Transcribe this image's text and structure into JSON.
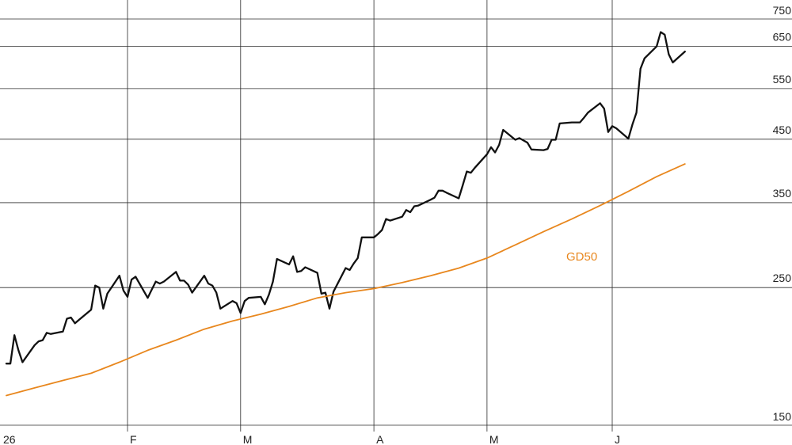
{
  "chart_data": {
    "type": "line",
    "title": "",
    "xlabel": "",
    "ylabel": "",
    "y_scale": "log",
    "ylim": [
      150,
      750
    ],
    "y_ticks": [
      150,
      250,
      350,
      450,
      550,
      650,
      750
    ],
    "x_ticks": [
      {
        "label": "26",
        "date": "2023-01-02"
      },
      {
        "label": "F",
        "date": "2023-02-01"
      },
      {
        "label": "M",
        "date": "2023-03-01"
      },
      {
        "label": "A",
        "date": "2023-04-03"
      },
      {
        "label": "M",
        "date": "2023-05-01"
      },
      {
        "label": "J",
        "date": "2023-06-01"
      }
    ],
    "xlim": [
      "2023-01-02",
      "2023-07-10"
    ],
    "grid": true,
    "legend": "none",
    "colors": {
      "price": "#111111",
      "ma": "#e8871e",
      "grid": "#2b2b2b"
    },
    "series": [
      {
        "name": "",
        "color": "#111111",
        "points": [
          [
            "2023-01-02",
            185
          ],
          [
            "2023-01-03",
            185
          ],
          [
            "2023-01-04",
            207
          ],
          [
            "2023-01-05",
            195
          ],
          [
            "2023-01-06",
            186
          ],
          [
            "2023-01-09",
            199
          ],
          [
            "2023-01-10",
            202
          ],
          [
            "2023-01-11",
            203
          ],
          [
            "2023-01-12",
            209
          ],
          [
            "2023-01-13",
            208
          ],
          [
            "2023-01-16",
            210
          ],
          [
            "2023-01-17",
            221
          ],
          [
            "2023-01-18",
            222
          ],
          [
            "2023-01-19",
            217
          ],
          [
            "2023-01-20",
            220
          ],
          [
            "2023-01-23",
            229
          ],
          [
            "2023-01-24",
            252
          ],
          [
            "2023-01-25",
            250
          ],
          [
            "2023-01-26",
            230
          ],
          [
            "2023-01-27",
            244
          ],
          [
            "2023-01-30",
            262
          ],
          [
            "2023-01-31",
            247
          ],
          [
            "2023-02-01",
            241
          ],
          [
            "2023-02-02",
            258
          ],
          [
            "2023-02-03",
            261
          ],
          [
            "2023-02-06",
            240
          ],
          [
            "2023-02-07",
            248
          ],
          [
            "2023-02-08",
            256
          ],
          [
            "2023-02-09",
            254
          ],
          [
            "2023-02-10",
            256
          ],
          [
            "2023-02-13",
            266
          ],
          [
            "2023-02-14",
            257
          ],
          [
            "2023-02-15",
            257
          ],
          [
            "2023-02-16",
            253
          ],
          [
            "2023-02-17",
            245
          ],
          [
            "2023-02-20",
            262
          ],
          [
            "2023-02-21",
            254
          ],
          [
            "2023-02-22",
            252
          ],
          [
            "2023-02-23",
            245
          ],
          [
            "2023-02-24",
            230
          ],
          [
            "2023-02-27",
            237
          ],
          [
            "2023-02-28",
            235
          ],
          [
            "2023-03-01",
            226
          ],
          [
            "2023-03-02",
            237
          ],
          [
            "2023-03-03",
            240
          ],
          [
            "2023-03-06",
            241
          ],
          [
            "2023-03-07",
            234
          ],
          [
            "2023-03-08",
            243
          ],
          [
            "2023-03-09",
            256
          ],
          [
            "2023-03-10",
            280
          ],
          [
            "2023-03-13",
            274
          ],
          [
            "2023-03-14",
            283
          ],
          [
            "2023-03-15",
            266
          ],
          [
            "2023-03-16",
            267
          ],
          [
            "2023-03-17",
            271
          ],
          [
            "2023-03-20",
            265
          ],
          [
            "2023-03-21",
            244
          ],
          [
            "2023-03-22",
            245
          ],
          [
            "2023-03-23",
            230
          ],
          [
            "2023-03-24",
            246
          ],
          [
            "2023-03-27",
            270
          ],
          [
            "2023-03-28",
            268
          ],
          [
            "2023-03-29",
            275
          ],
          [
            "2023-03-30",
            281
          ],
          [
            "2023-03-31",
            305
          ],
          [
            "2023-04-03",
            305
          ],
          [
            "2023-04-04",
            309
          ],
          [
            "2023-04-05",
            314
          ],
          [
            "2023-04-06",
            328
          ],
          [
            "2023-04-07",
            326
          ],
          [
            "2023-04-10",
            331
          ],
          [
            "2023-04-11",
            340
          ],
          [
            "2023-04-12",
            337
          ],
          [
            "2023-04-13",
            345
          ],
          [
            "2023-04-14",
            346
          ],
          [
            "2023-04-17",
            354
          ],
          [
            "2023-04-18",
            357
          ],
          [
            "2023-04-19",
            367
          ],
          [
            "2023-04-20",
            367
          ],
          [
            "2023-04-21",
            364
          ],
          [
            "2023-04-24",
            356
          ],
          [
            "2023-04-25",
            375
          ],
          [
            "2023-04-26",
            396
          ],
          [
            "2023-04-27",
            394
          ],
          [
            "2023-04-28",
            402
          ],
          [
            "2023-05-01",
            424
          ],
          [
            "2023-05-02",
            436
          ],
          [
            "2023-05-03",
            427
          ],
          [
            "2023-05-04",
            440
          ],
          [
            "2023-05-05",
            467
          ],
          [
            "2023-05-08",
            449
          ],
          [
            "2023-05-09",
            452
          ],
          [
            "2023-05-10",
            448
          ],
          [
            "2023-05-11",
            444
          ],
          [
            "2023-05-12",
            432
          ],
          [
            "2023-05-15",
            431
          ],
          [
            "2023-05-16",
            433
          ],
          [
            "2023-05-17",
            449
          ],
          [
            "2023-05-18",
            449
          ],
          [
            "2023-05-19",
            479
          ],
          [
            "2023-05-22",
            481
          ],
          [
            "2023-05-23",
            481
          ],
          [
            "2023-05-24",
            481
          ],
          [
            "2023-05-25",
            490
          ],
          [
            "2023-05-26",
            500
          ],
          [
            "2023-05-29",
            519
          ],
          [
            "2023-05-30",
            508
          ],
          [
            "2023-05-31",
            463
          ],
          [
            "2023-06-01",
            474
          ],
          [
            "2023-06-02",
            470
          ],
          [
            "2023-06-05",
            451
          ],
          [
            "2023-06-06",
            477
          ],
          [
            "2023-06-07",
            500
          ],
          [
            "2023-06-08",
            595
          ],
          [
            "2023-06-09",
            620
          ],
          [
            "2023-06-12",
            650
          ],
          [
            "2023-06-13",
            688
          ],
          [
            "2023-06-14",
            681
          ],
          [
            "2023-06-15",
            630
          ],
          [
            "2023-06-16",
            610
          ],
          [
            "2023-06-19",
            637
          ]
        ]
      },
      {
        "name": "GD50",
        "color": "#e8871e",
        "points": [
          [
            "2023-01-02",
            163
          ],
          [
            "2023-01-09",
            168
          ],
          [
            "2023-01-16",
            173
          ],
          [
            "2023-01-23",
            178
          ],
          [
            "2023-01-30",
            186
          ],
          [
            "2023-02-06",
            195
          ],
          [
            "2023-02-13",
            203
          ],
          [
            "2023-02-20",
            212
          ],
          [
            "2023-02-27",
            219
          ],
          [
            "2023-03-06",
            225
          ],
          [
            "2023-03-13",
            232
          ],
          [
            "2023-03-20",
            240
          ],
          [
            "2023-03-27",
            245
          ],
          [
            "2023-04-03",
            249
          ],
          [
            "2023-04-10",
            255
          ],
          [
            "2023-04-17",
            262
          ],
          [
            "2023-04-24",
            270
          ],
          [
            "2023-05-01",
            281
          ],
          [
            "2023-05-08",
            296
          ],
          [
            "2023-05-15",
            312
          ],
          [
            "2023-05-22",
            328
          ],
          [
            "2023-05-29",
            346
          ],
          [
            "2023-06-05",
            366
          ],
          [
            "2023-06-12",
            388
          ],
          [
            "2023-06-19",
            408
          ]
        ]
      }
    ]
  },
  "labels": {
    "ma_label": "GD50"
  }
}
